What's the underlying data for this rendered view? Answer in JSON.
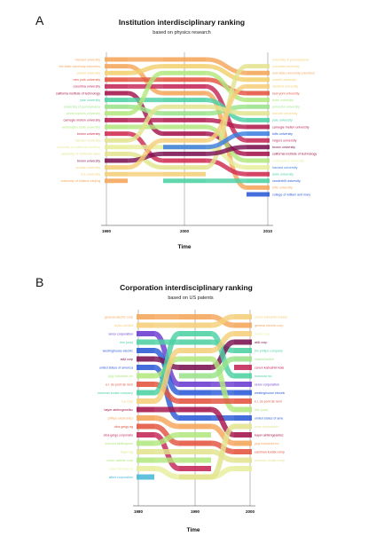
{
  "chart_data": [
    {
      "type": "bump",
      "panel": "A",
      "title": "Institution interdisciplinary ranking",
      "subtitle": "based on physics research",
      "xlabel": "Time",
      "x_ticks": [
        "1990",
        "2000",
        "2010"
      ],
      "left_labels": [
        {
          "text": "harvard university",
          "color": "#f5a55a"
        },
        {
          "text": "the state university columbus",
          "color": "#f5a55a"
        },
        {
          "text": "cornell university",
          "color": "#f2cf6e"
        },
        {
          "text": "new york university",
          "color": "#e2533e"
        },
        {
          "text": "columbia university",
          "color": "#c42456"
        },
        {
          "text": "california institute of technology",
          "color": "#a3124a"
        },
        {
          "text": "yale university",
          "color": "#4cd1a3"
        },
        {
          "text": "university of pennsylvania",
          "color": "#9be38a"
        },
        {
          "text": "johns hopkins university",
          "color": "#b2e87e"
        },
        {
          "text": "carnegie mellon university",
          "color": "#b31c4e"
        },
        {
          "text": "washington state university",
          "color": "#b2e87e"
        },
        {
          "text": "brown university",
          "color": "#d02a50"
        },
        {
          "text": "harvard university",
          "color": "#e2e48f"
        },
        {
          "text": "university of california berkeley",
          "color": "#e8ee9c"
        },
        {
          "text": "university of california davis",
          "color": "#e2e48f"
        },
        {
          "text": "brown university",
          "color": "#7a1050"
        },
        {
          "text": "purdue university",
          "color": "#f5cf7a"
        },
        {
          "text": "rice university",
          "color": "#f5cf7a"
        },
        {
          "text": "university of indiana nanjing",
          "color": "#f5a55a"
        }
      ],
      "right_labels": [
        {
          "text": "university of pennsylvania",
          "color": "#f5cf7a"
        },
        {
          "text": "columbia university",
          "color": "#f5cf7a"
        },
        {
          "text": "new state university columbus",
          "color": "#f5a55a"
        },
        {
          "text": "cornell university",
          "color": "#f2cf6e"
        },
        {
          "text": "stanford university",
          "color": "#f2cf6e"
        },
        {
          "text": "new york university",
          "color": "#e2533e"
        },
        {
          "text": "duke university",
          "color": "#b2e87e"
        },
        {
          "text": "princeton university",
          "color": "#9be38a"
        },
        {
          "text": "harvard university",
          "color": "#f5cf7a"
        },
        {
          "text": "yale university",
          "color": "#4cd1a3"
        },
        {
          "text": "carnegie mellon university",
          "color": "#b31c4e"
        },
        {
          "text": "tufts university",
          "color": "#2a5ad6"
        },
        {
          "text": "rutgers university",
          "color": "#c42456"
        },
        {
          "text": "brown university",
          "color": "#7a1050"
        },
        {
          "text": "california institute of technology",
          "color": "#a3124a"
        },
        {
          "text": "northeastern university",
          "color": "#e8ee9c"
        },
        {
          "text": "harvard university",
          "color": "#3d7fe0"
        },
        {
          "text": "duke university",
          "color": "#4cd1a3"
        },
        {
          "text": "vanderbilt university",
          "color": "#2a5ad6"
        },
        {
          "text": "tufts university",
          "color": "#f5a55a"
        },
        {
          "text": "college of william and mary",
          "color": "#2a5ad6"
        }
      ],
      "series": [
        {
          "color": "#f5a55a",
          "ranks": [
            1,
            1,
            3
          ]
        },
        {
          "color": "#f5a55a",
          "ranks": [
            2,
            6,
            20
          ]
        },
        {
          "color": "#f2cf6e",
          "ranks": [
            3,
            2,
            4
          ]
        },
        {
          "color": "#e2533e",
          "ranks": [
            4,
            4,
            6
          ]
        },
        {
          "color": "#c42456",
          "ranks": [
            5,
            5,
            13
          ]
        },
        {
          "color": "#a3124a",
          "ranks": [
            6,
            12,
            15
          ]
        },
        {
          "color": "#4cd1a3",
          "ranks": [
            7,
            7,
            10
          ]
        },
        {
          "color": "#9be38a",
          "ranks": [
            8,
            9,
            8
          ]
        },
        {
          "color": "#b2e87e",
          "ranks": [
            9,
            3,
            7
          ]
        },
        {
          "color": "#b31c4e",
          "ranks": [
            10,
            10,
            11
          ]
        },
        {
          "color": "#b2e87e",
          "ranks": [
            11,
            11,
            16
          ]
        },
        {
          "color": "#d02a50",
          "ranks": [
            12,
            16,
            18
          ]
        },
        {
          "color": "#e2e48f",
          "ranks": [
            13,
            8,
            9
          ]
        },
        {
          "color": "#e8ee9c",
          "ranks": [
            14,
            14,
            17
          ]
        },
        {
          "color": "#e2e48f",
          "ranks": [
            15,
            17,
            2
          ]
        },
        {
          "color": "#7a1050",
          "ranks": [
            16,
            15,
            14
          ]
        },
        {
          "color": "#f5cf7a",
          "ranks": [
            17,
            13,
            5
          ]
        },
        {
          "color": "#f5cf7a",
          "ranks": [
            18,
            18,
            null
          ]
        },
        {
          "color": "#f5a55a",
          "ranks": [
            19,
            null,
            null
          ]
        },
        {
          "color": "#4cd1a3",
          "ranks": [
            null,
            19,
            19
          ]
        },
        {
          "color": "#3d7fe0",
          "ranks": [
            null,
            14,
            12
          ]
        },
        {
          "color": "#2a5ad6",
          "ranks": [
            null,
            null,
            21
          ]
        }
      ]
    },
    {
      "type": "bump",
      "panel": "B",
      "title": "Corporation interdisciplinary ranking",
      "subtitle": "based on US patents",
      "xlabel": "Time",
      "x_ticks": [
        "1980",
        "1990",
        "2000"
      ],
      "left_labels": [
        {
          "text": "general electric corp",
          "color": "#f5a55a"
        },
        {
          "text": "fujitsu limited",
          "color": "#f5cf7a"
        },
        {
          "text": "xerox corporation",
          "color": "#6a3ad0"
        },
        {
          "text": "ibm (usa)",
          "color": "#4cd1a3"
        },
        {
          "text": "westinghouse electric",
          "color": "#2a5ad6"
        },
        {
          "text": "at&t corp",
          "color": "#7a1050"
        },
        {
          "text": "united states of america",
          "color": "#2a5ad6"
        },
        {
          "text": "ppg industries inc",
          "color": "#b2e87e"
        },
        {
          "text": "e.i. du pont de nem",
          "color": "#e2533e"
        },
        {
          "text": "eastman kodak company",
          "color": "#4cd1a3"
        },
        {
          "text": "rca corp",
          "color": "#f5cf7a"
        },
        {
          "text": "bayer aktiengesellsc",
          "color": "#a3124a"
        },
        {
          "text": "philips electronics",
          "color": "#f5a55a"
        },
        {
          "text": "ciba geigy ag",
          "color": "#e2533e"
        },
        {
          "text": "ciba-geigy corporatio",
          "color": "#c42456"
        },
        {
          "text": "hoechst aktiengesel",
          "color": "#b2e87e"
        },
        {
          "text": "bayer ag",
          "color": "#e2e48f"
        },
        {
          "text": "union carbide corp",
          "color": "#b2e87e"
        },
        {
          "text": "dow chemical co",
          "color": "#e8ee9c"
        },
        {
          "text": "allied corporation",
          "color": "#4ab8d8"
        }
      ],
      "right_labels": [
        {
          "text": "canon kabushiki kaisha",
          "color": "#f5cf7a"
        },
        {
          "text": "general electric corp",
          "color": "#f5a55a"
        },
        {
          "text": "xerox corp",
          "color": "#e8ee9c"
        },
        {
          "text": "at&t corp",
          "color": "#7a1050"
        },
        {
          "text": "the philips company",
          "color": "#4cd1a3"
        },
        {
          "text": "hitachi limited",
          "color": "#9be38a"
        },
        {
          "text": "canon kabushiki kais",
          "color": "#c42456"
        },
        {
          "text": "motorola inc",
          "color": "#4cd1a3"
        },
        {
          "text": "xerox corporation",
          "color": "#6a3ad0"
        },
        {
          "text": "westinghouse electric",
          "color": "#2a5ad6"
        },
        {
          "text": "e.i. du pont de nem",
          "color": "#e2533e"
        },
        {
          "text": "ibm (usa)",
          "color": "#b2e87e"
        },
        {
          "text": "united states of ame",
          "color": "#2a5ad6"
        },
        {
          "text": "sony corporation",
          "color": "#e2e48f"
        },
        {
          "text": "bayer aktiengesellsc",
          "color": "#a3124a"
        },
        {
          "text": "ppg industries inc",
          "color": "#f5a55a"
        },
        {
          "text": "eastman kodak comp",
          "color": "#e2533e"
        },
        {
          "text": "eastman kodak comp",
          "color": "#e2e48f"
        }
      ],
      "series": [
        {
          "color": "#f5a55a",
          "ranks": [
            1,
            1,
            2
          ]
        },
        {
          "color": "#f5cf7a",
          "ranks": [
            2,
            2,
            1
          ]
        },
        {
          "color": "#6a3ad0",
          "ranks": [
            3,
            9,
            9
          ]
        },
        {
          "color": "#4cd1a3",
          "ranks": [
            4,
            4,
            5
          ]
        },
        {
          "color": "#2a5ad6",
          "ranks": [
            5,
            10,
            10
          ]
        },
        {
          "color": "#7a1050",
          "ranks": [
            6,
            7,
            4
          ]
        },
        {
          "color": "#2a5ad6",
          "ranks": [
            7,
            13,
            13
          ]
        },
        {
          "color": "#b2e87e",
          "ranks": [
            8,
            6,
            12
          ]
        },
        {
          "color": "#e2533e",
          "ranks": [
            9,
            11,
            11
          ]
        },
        {
          "color": "#4cd1a3",
          "ranks": [
            10,
            3,
            8
          ]
        },
        {
          "color": "#f5cf7a",
          "ranks": [
            11,
            5,
            3
          ]
        },
        {
          "color": "#a3124a",
          "ranks": [
            12,
            12,
            15
          ]
        },
        {
          "color": "#f5a55a",
          "ranks": [
            13,
            14,
            16
          ]
        },
        {
          "color": "#e2533e",
          "ranks": [
            14,
            16,
            17
          ]
        },
        {
          "color": "#c42456",
          "ranks": [
            15,
            19,
            null
          ]
        },
        {
          "color": "#b2e87e",
          "ranks": [
            16,
            15,
            null
          ]
        },
        {
          "color": "#e2e48f",
          "ranks": [
            17,
            17,
            18
          ]
        },
        {
          "color": "#b2e87e",
          "ranks": [
            18,
            18,
            null
          ]
        },
        {
          "color": "#e8ee9c",
          "ranks": [
            19,
            20,
            19
          ]
        },
        {
          "color": "#4ab8d8",
          "ranks": [
            20,
            null,
            null
          ]
        },
        {
          "color": "#9be38a",
          "ranks": [
            null,
            8,
            6
          ]
        },
        {
          "color": "#c42456",
          "ranks": [
            null,
            null,
            7
          ]
        },
        {
          "color": "#e2e48f",
          "ranks": [
            null,
            20,
            14
          ]
        }
      ]
    }
  ]
}
